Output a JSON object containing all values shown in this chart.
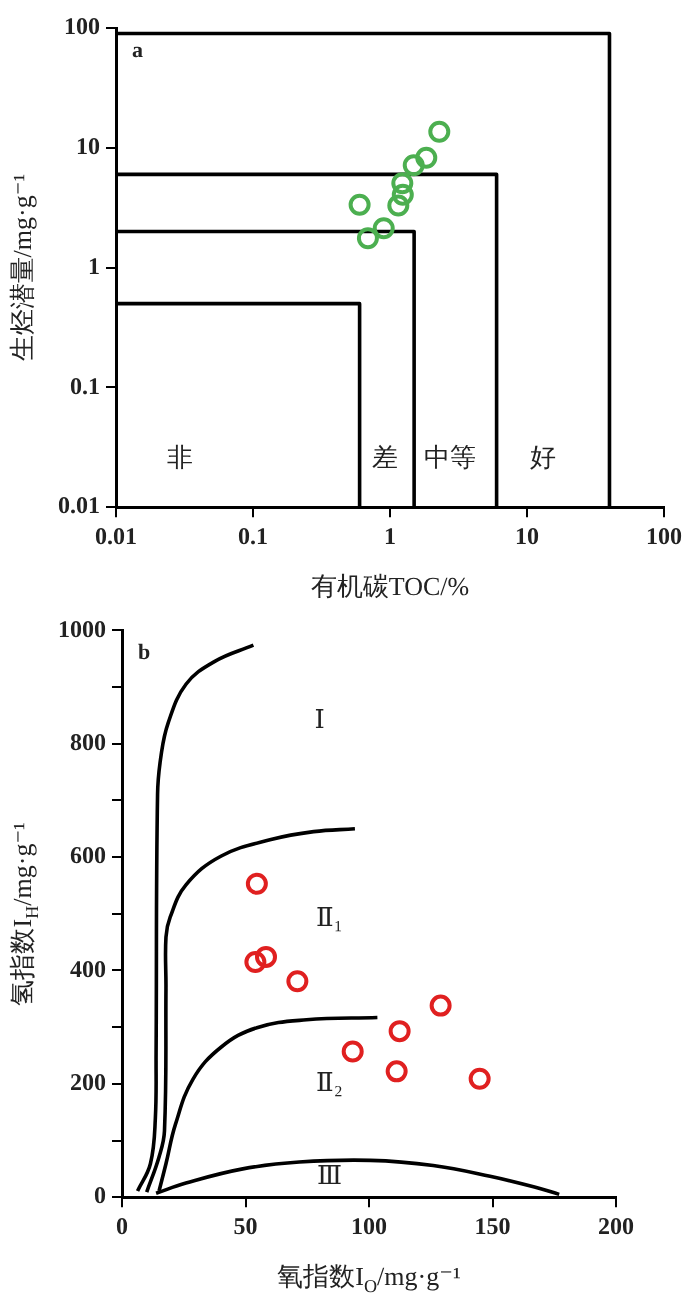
{
  "chart_data": [
    {
      "type": "scatter",
      "title": "a",
      "xlabel": "有机碳TOC/%",
      "ylabel": "生烃潜量/mg·g⁻¹",
      "log": "xy",
      "xlim": [
        0.01,
        100
      ],
      "ylim": [
        0.01,
        100
      ],
      "xticks": [
        0.01,
        0.1,
        1,
        10,
        100
      ],
      "yticks": [
        0.01,
        0.1,
        1,
        10,
        100
      ],
      "grid": false,
      "legend": false,
      "line_style": "solid",
      "series": [
        {
          "color": "#4caf50",
          "marker": "circle",
          "x": [
            0.6,
            0.69,
            0.9,
            1.15,
            1.24,
            1.23,
            1.49,
            1.84,
            2.29
          ],
          "values": [
            3.35,
            1.76,
            2.13,
            3.3,
            4.06,
            5.06,
            7.16,
            8.25,
            13.6
          ]
        },
        {
          "type": "line",
          "color": "#000000",
          "marker": "none",
          "x": [
            0.01,
            0.6,
            0.6
          ],
          "values": [
            0.5,
            0.5,
            0.01
          ]
        },
        {
          "type": "line",
          "color": "#000000",
          "marker": "none",
          "x": [
            0.01,
            1.5,
            1.5
          ],
          "values": [
            2,
            2,
            0.01
          ]
        },
        {
          "type": "line",
          "color": "#000000",
          "marker": "none",
          "x": [
            0.01,
            6,
            6
          ],
          "values": [
            6,
            6,
            0.01
          ]
        },
        {
          "type": "line",
          "color": "#000000",
          "marker": "none",
          "x": [
            0.01,
            40,
            40
          ],
          "values": [
            90,
            90,
            0.01
          ]
        }
      ],
      "annotations": [
        "非",
        "差",
        "中等",
        "好"
      ]
    },
    {
      "type": "scatter",
      "title": "b",
      "xlabel": "氧指数I$_{O}$/mg·g⁻¹",
      "ylabel": "氢指数I$_{H}$/mg·g⁻¹",
      "xlim": [
        0,
        200
      ],
      "ylim": [
        0,
        1000
      ],
      "xticks": [
        0,
        50,
        100,
        150,
        200
      ],
      "yticks": [
        0,
        {
          "value": 100,
          "label": null
        },
        200,
        {
          "value": 300,
          "label": null
        },
        400,
        {
          "value": 500,
          "label": null
        },
        600,
        {
          "value": 700,
          "label": null
        },
        800,
        {
          "value": 900,
          "label": null
        },
        1000
      ],
      "grid": false,
      "legend": false,
      "line_style": "solid",
      "series": [
        {
          "color": "#e02020",
          "marker": "circle",
          "x": [
            54.6,
            54,
            58.3,
            71,
            93.4,
            112.4,
            111.2,
            129,
            144.8
          ],
          "values": [
            553,
            415,
            424,
            381,
            257,
            293,
            222,
            338,
            209
          ]
        },
        {
          "type": "line",
          "color": "#000000",
          "marker": "none",
          "x": [
            6.3,
            11.5,
            13.5,
            13.8,
            14.4,
            15.8,
            18.7,
            25.9,
            37.4,
            53.2
          ],
          "values": [
            11,
            59,
            139,
            254,
            711,
            779,
            837,
            905,
            945,
            974
          ]
        },
        {
          "type": "line",
          "color": "#000000",
          "marker": "none",
          "x": [
            10,
            15,
            17.2,
            17.8,
            17.8,
            19.5,
            25.9,
            40.2,
            60.3,
            77.6,
            94.3
          ],
          "values": [
            9,
            71,
            117,
            368,
            459,
            494,
            551,
            602,
            631,
            645,
            650
          ]
        },
        {
          "type": "line",
          "color": "#000000",
          "marker": "none",
          "x": [
            15,
            17.8,
            21.6,
            28.7,
            40.2,
            54.6,
            74.7,
            103.4
          ],
          "values": [
            11,
            59,
            128,
            208,
            265,
            299,
            313,
            317
          ]
        },
        {
          "type": "line",
          "color": "#000000",
          "marker": "none",
          "x": [
            13.8,
            25.9,
            48.9,
            71.8,
            100.6,
            126,
            149,
            167,
            177
          ],
          "values": [
            7,
            25,
            50,
            62,
            65,
            56,
            37,
            18,
            5
          ]
        }
      ],
      "annotations": [
        "Ⅰ",
        "Ⅱ₁",
        "Ⅱ₂",
        "Ⅲ"
      ]
    }
  ]
}
